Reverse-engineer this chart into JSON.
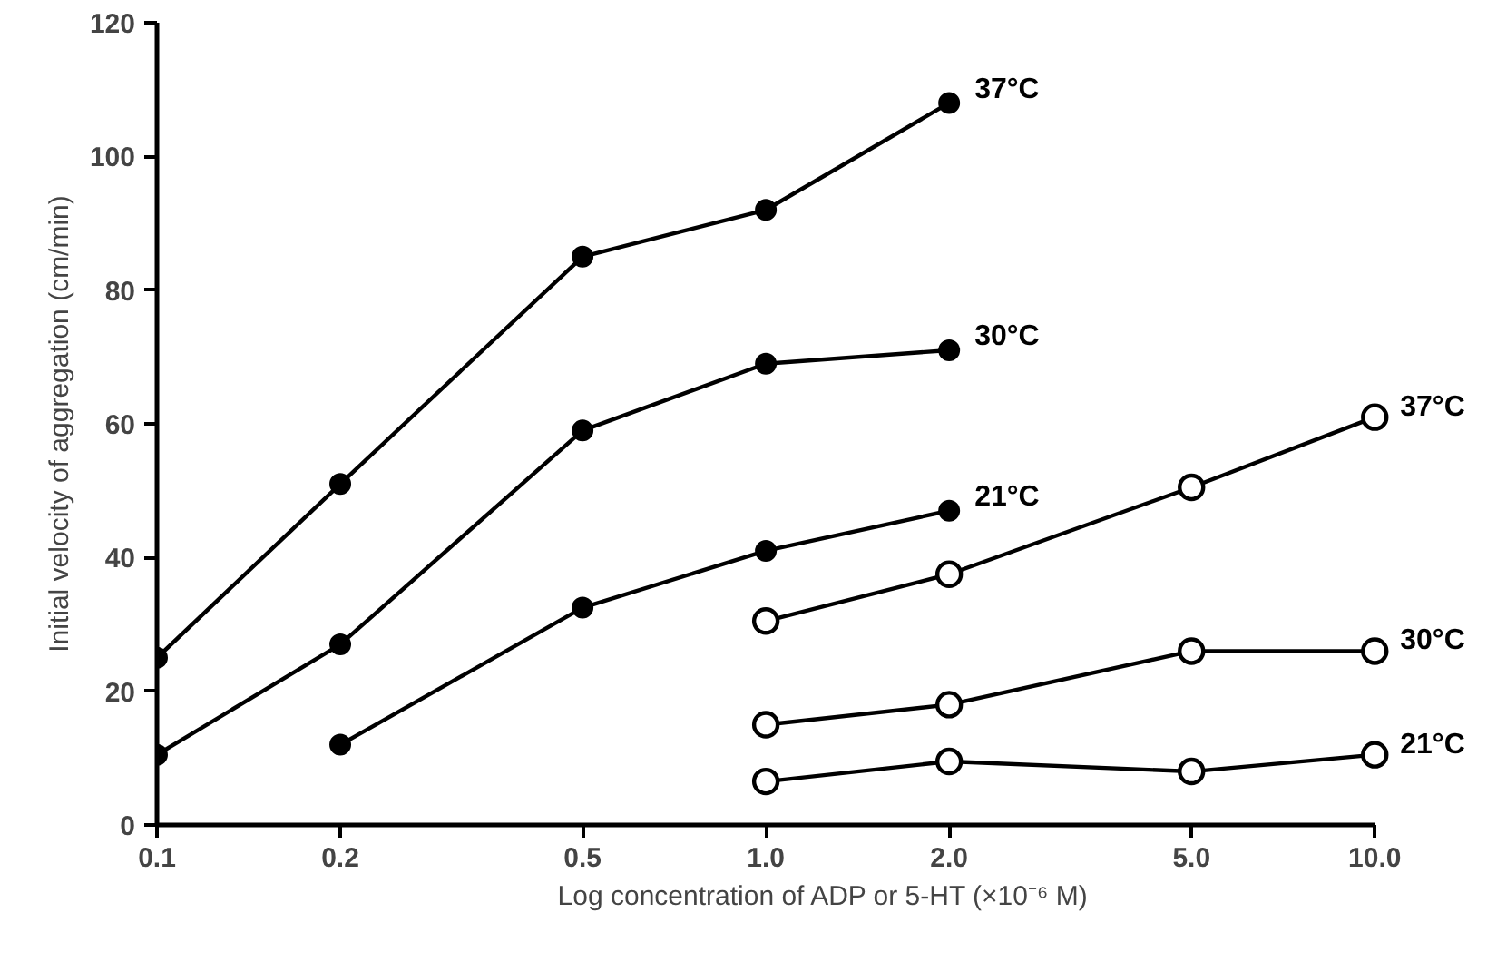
{
  "chart_data": {
    "type": "line",
    "xlabel": "Log concentration of ADP or 5-HT (×10⁻⁶ M)",
    "ylabel": "Initial velocity of aggregation (cm/min)",
    "log": "x",
    "xlim": [
      0.1,
      10
    ],
    "ylim": [
      0,
      120
    ],
    "xticks": [
      {
        "value": 0.1,
        "label": "0.1"
      },
      {
        "value": 0.2,
        "label": "0.2"
      },
      {
        "value": 0.5,
        "label": "0.5"
      },
      {
        "value": 1,
        "label": "1.0"
      },
      {
        "value": 2,
        "label": "2.0"
      },
      {
        "value": 5,
        "label": "5.0"
      },
      {
        "value": 10,
        "label": "10.0"
      }
    ],
    "yticks": [
      0,
      20,
      40,
      60,
      80,
      100,
      120
    ],
    "grid": false,
    "legend": false,
    "line_style": "solid",
    "series": [
      {
        "name": "37°C",
        "color": "#000000",
        "marker": "circle",
        "x": [
          0.1,
          0.2,
          0.5,
          1,
          2
        ],
        "values": [
          25,
          51,
          85,
          92,
          108
        ]
      },
      {
        "name": "30°C",
        "color": "#000000",
        "marker": "circle",
        "x": [
          0.1,
          0.2,
          0.5,
          1,
          2
        ],
        "values": [
          10.5,
          27,
          59,
          69,
          71
        ]
      },
      {
        "name": "21°C",
        "color": "#000000",
        "marker": "circle",
        "x": [
          0.2,
          0.5,
          1,
          2
        ],
        "values": [
          12,
          32.5,
          41,
          47
        ]
      },
      {
        "name": "37°C",
        "color": "#000000",
        "marker": "circle_open",
        "x": [
          1,
          2,
          5,
          10
        ],
        "values": [
          30.5,
          37.5,
          50.5,
          61
        ]
      },
      {
        "name": "30°C",
        "color": "#000000",
        "marker": "circle_open",
        "x": [
          1,
          2,
          5,
          10
        ],
        "values": [
          15,
          18,
          26,
          26
        ]
      },
      {
        "name": "21°C",
        "color": "#000000",
        "marker": "circle_open",
        "x": [
          1,
          2,
          5,
          10
        ],
        "values": [
          6.5,
          9.5,
          8,
          10.5
        ]
      }
    ]
  }
}
